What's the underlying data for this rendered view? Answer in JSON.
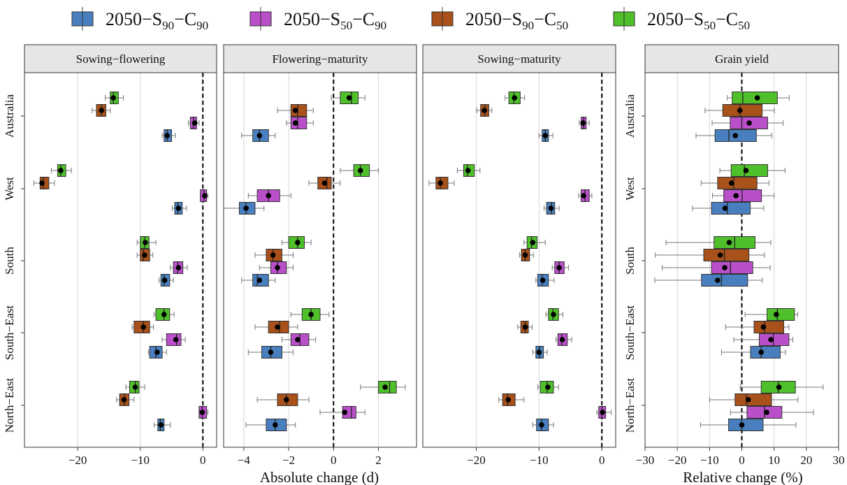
{
  "legend": {
    "position": "top",
    "entries": [
      {
        "key": "s90c90",
        "base": "2050−S",
        "sub1": "90",
        "mid": "−C",
        "sub2": "90",
        "color": "#4a7fbf"
      },
      {
        "key": "s50c90",
        "base": "2050−S",
        "sub1": "50",
        "mid": "−C",
        "sub2": "90",
        "color": "#b94fc9"
      },
      {
        "key": "s90c50",
        "base": "2050−S",
        "sub1": "90",
        "mid": "−C",
        "sub2": "50",
        "color": "#a8511b"
      },
      {
        "key": "s50c50",
        "base": "2050−S",
        "sub1": "50",
        "mid": "−C",
        "sub2": "50",
        "color": "#4fbf2a"
      }
    ]
  },
  "axis_titles": {
    "absolute": "Absolute change (d)",
    "relative": "Relative change (%)"
  },
  "chart_data": {
    "type": "boxplot",
    "orientation": "horizontal",
    "regions": [
      "Australia",
      "West",
      "South",
      "South−East",
      "North−East"
    ],
    "series_order": [
      "s90c90",
      "s50c90",
      "s90c50",
      "s50c50"
    ],
    "reference_line": 0,
    "grid": true,
    "note": "Each box: [whisker_low, q1, median, q3, whisker_high, mean]",
    "panels": [
      {
        "title": "Sowing−flowering",
        "xlim": [
          -28.5,
          2.2
        ],
        "ticks": [
          -20,
          -10,
          0
        ],
        "tick_labels": [
          "−20",
          "−10",
          "0"
        ],
        "data": {
          "Australia": {
            "s90c90": [
              -6.5,
              -6.2,
              -5.7,
              -5.0,
              -4.4,
              -5.7
            ],
            "s50c90": [
              -2.3,
              -2.0,
              -1.5,
              -1.0,
              -0.6,
              -1.3
            ],
            "s90c50": [
              -17.7,
              -17.0,
              -16.2,
              -15.5,
              -14.8,
              -16.2
            ],
            "s50c50": [
              -15.6,
              -14.8,
              -14.3,
              -13.5,
              -12.7,
              -14.3
            ]
          },
          "West": {
            "s90c90": [
              -4.9,
              -4.5,
              -4.0,
              -3.3,
              -2.6,
              -3.9
            ],
            "s50c90": [
              -0.4,
              -0.4,
              0.2,
              0.6,
              0.8,
              0.3
            ],
            "s90c50": [
              -27.0,
              -26.0,
              -25.5,
              -24.6,
              -23.7,
              -25.7
            ],
            "s50c50": [
              -24.2,
              -23.2,
              -22.7,
              -21.9,
              -21.0,
              -22.7
            ]
          },
          "South": {
            "s90c90": [
              -7.0,
              -6.7,
              -6.2,
              -5.3,
              -4.7,
              -6.1
            ],
            "s50c90": [
              -5.2,
              -4.7,
              -4.0,
              -3.2,
              -2.5,
              -3.9
            ],
            "s90c50": [
              -10.5,
              -10.0,
              -9.5,
              -8.5,
              -8.0,
              -9.3
            ],
            "s50c50": [
              -10.5,
              -10.0,
              -9.3,
              -8.6,
              -7.5,
              -9.2
            ]
          },
          "South−East": {
            "s90c90": [
              -8.7,
              -8.5,
              -7.5,
              -6.5,
              -5.8,
              -7.3
            ],
            "s50c90": [
              -6.5,
              -5.8,
              -4.2,
              -3.5,
              -2.8,
              -4.3
            ],
            "s90c50": [
              -11.3,
              -11.0,
              -9.5,
              -8.5,
              -7.9,
              -9.5
            ],
            "s50c50": [
              -7.8,
              -7.5,
              -6.2,
              -5.3,
              -4.6,
              -6.2
            ]
          },
          "North−East": {
            "s90c90": [
              -7.8,
              -7.2,
              -6.8,
              -6.2,
              -5.2,
              -6.7
            ],
            "s50c90": [
              -0.6,
              -0.6,
              -0.1,
              0.6,
              0.8,
              -0.1
            ],
            "s90c50": [
              -13.8,
              -13.3,
              -12.5,
              -11.8,
              -11.0,
              -12.6
            ],
            "s50c50": [
              -12.3,
              -11.7,
              -10.8,
              -10.2,
              -9.3,
              -10.8
            ]
          }
        }
      },
      {
        "title": "Flowering−maturity",
        "xlim": [
          -4.9,
          3.7
        ],
        "ticks": [
          -4,
          -2,
          0,
          2
        ],
        "tick_labels": [
          "−4",
          "−2",
          "0",
          "2"
        ],
        "data": {
          "Australia": {
            "s90c90": [
              -4.1,
              -3.6,
              -3.3,
              -2.9,
              -2.6,
              -3.3
            ],
            "s50c90": [
              -2.1,
              -1.9,
              -1.6,
              -1.2,
              -0.9,
              -1.7
            ],
            "s90c50": [
              -2.5,
              -1.9,
              -1.6,
              -1.2,
              -0.9,
              -1.7
            ],
            "s50c50": [
              -0.1,
              0.3,
              0.8,
              1.1,
              1.4,
              0.7
            ]
          },
          "West": {
            "s90c90": [
              -4.9,
              -4.2,
              -3.9,
              -3.5,
              -3.1,
              -3.9
            ],
            "s50c90": [
              -3.8,
              -3.4,
              -2.9,
              -2.4,
              -1.9,
              -2.9
            ],
            "s90c50": [
              -1.1,
              -0.7,
              -0.3,
              -0.1,
              0.3,
              -0.4
            ],
            "s50c50": [
              0.3,
              0.9,
              1.2,
              1.6,
              2.0,
              1.2
            ]
          },
          "South": {
            "s90c90": [
              -4.1,
              -3.6,
              -3.4,
              -2.9,
              -2.6,
              -3.3
            ],
            "s50c90": [
              -3.3,
              -2.8,
              -2.5,
              -2.1,
              -1.8,
              -2.5
            ],
            "s90c50": [
              -3.5,
              -3.0,
              -2.7,
              -2.3,
              -1.8,
              -2.7
            ],
            "s50c50": [
              -2.3,
              -2.0,
              -1.6,
              -1.3,
              -1.0,
              -1.6
            ]
          },
          "South−East": {
            "s90c90": [
              -3.8,
              -3.2,
              -2.8,
              -2.3,
              -1.8,
              -2.8
            ],
            "s50c90": [
              -2.3,
              -1.9,
              -1.5,
              -1.1,
              -0.8,
              -1.6
            ],
            "s90c50": [
              -3.5,
              -2.9,
              -2.4,
              -2.0,
              -1.6,
              -2.5
            ],
            "s50c50": [
              -1.9,
              -1.4,
              -1.0,
              -0.6,
              -0.2,
              -1.0
            ]
          },
          "North−East": {
            "s90c90": [
              -3.9,
              -3.0,
              -2.6,
              -2.1,
              -1.7,
              -2.6
            ],
            "s50c90": [
              -0.6,
              0.4,
              0.8,
              1.0,
              1.4,
              0.5
            ],
            "s90c50": [
              -3.4,
              -2.5,
              -2.1,
              -1.6,
              -1.1,
              -2.1
            ],
            "s50c50": [
              1.2,
              2.0,
              2.5,
              2.8,
              3.2,
              2.3
            ]
          }
        }
      },
      {
        "title": "Sowing−maturity",
        "xlim": [
          -28.5,
          2.2
        ],
        "ticks": [
          -20,
          -10,
          0
        ],
        "tick_labels": [
          "−20",
          "−10",
          "0"
        ],
        "data": {
          "Australia": {
            "s90c90": [
              -10.0,
              -9.5,
              -9.0,
              -8.5,
              -7.8,
              -9.0
            ],
            "s50c90": [
              -3.6,
              -3.3,
              -2.9,
              -2.5,
              -2.0,
              -3.0
            ],
            "s90c50": [
              -19.9,
              -19.3,
              -18.6,
              -18.0,
              -17.5,
              -18.7
            ],
            "s50c50": [
              -15.4,
              -14.8,
              -14.0,
              -13.0,
              -12.3,
              -13.9
            ]
          },
          "West": {
            "s90c90": [
              -9.2,
              -8.8,
              -8.0,
              -7.5,
              -6.8,
              -8.1
            ],
            "s50c90": [
              -3.7,
              -3.3,
              -2.7,
              -2.0,
              -1.6,
              -2.9
            ],
            "s90c50": [
              -27.5,
              -26.4,
              -25.7,
              -24.5,
              -23.5,
              -25.7
            ],
            "s50c50": [
              -23.0,
              -22.0,
              -21.4,
              -20.3,
              -19.4,
              -21.3
            ]
          },
          "South": {
            "s90c90": [
              -10.5,
              -10.2,
              -9.5,
              -8.5,
              -7.6,
              -9.4
            ],
            "s50c90": [
              -7.9,
              -7.5,
              -6.8,
              -6.0,
              -5.3,
              -6.8
            ],
            "s90c50": [
              -13.1,
              -12.8,
              -12.2,
              -11.5,
              -10.9,
              -12.2
            ],
            "s50c50": [
              -12.4,
              -11.9,
              -11.2,
              -10.3,
              -9.0,
              -11.0
            ]
          },
          "South−East": {
            "s90c90": [
              -11.0,
              -10.5,
              -9.9,
              -9.3,
              -8.7,
              -10.0
            ],
            "s50c90": [
              -7.3,
              -7.0,
              -6.4,
              -5.5,
              -4.8,
              -6.3
            ],
            "s90c50": [
              -13.4,
              -12.9,
              -12.2,
              -11.7,
              -11.1,
              -12.2
            ],
            "s50c50": [
              -8.9,
              -8.5,
              -7.8,
              -6.9,
              -6.2,
              -7.7
            ]
          },
          "North−East": {
            "s90c90": [
              -11.0,
              -10.4,
              -9.6,
              -8.5,
              -7.7,
              -9.6
            ],
            "s50c90": [
              -0.8,
              -0.5,
              0.0,
              0.6,
              1.5,
              0.1
            ],
            "s90c50": [
              -16.4,
              -15.8,
              -15.0,
              -13.8,
              -12.4,
              -14.9
            ],
            "s50c50": [
              -10.2,
              -9.8,
              -8.7,
              -7.7,
              -6.9,
              -8.6
            ]
          }
        }
      },
      {
        "title": "Grain yield",
        "xlim": [
          -30,
          30
        ],
        "ticks": [
          -30,
          -20,
          -10,
          0,
          10,
          20,
          30
        ],
        "tick_labels": [
          "−30",
          "−20",
          "−10",
          "0",
          "10",
          "20",
          "30"
        ],
        "data": {
          "Australia": {
            "s90c90": [
              -14.2,
              -8.3,
              -4.0,
              4.5,
              9.3,
              -2.0
            ],
            "s50c90": [
              -9.2,
              -3.6,
              0.0,
              8.0,
              12.8,
              2.3
            ],
            "s90c50": [
              -11.4,
              -5.9,
              -0.5,
              6.3,
              10.1,
              -0.6
            ],
            "s50c50": [
              -4.5,
              -3.0,
              0.3,
              11.0,
              14.7,
              4.8
            ]
          },
          "West": {
            "s90c90": [
              -15.3,
              -9.4,
              -4.5,
              2.6,
              6.8,
              -5.2
            ],
            "s50c90": [
              -9.1,
              -5.6,
              0.1,
              6.1,
              10.0,
              -1.8
            ],
            "s90c50": [
              -12.6,
              -7.5,
              -2.5,
              4.7,
              8.4,
              -3.2
            ],
            "s50c50": [
              -6.8,
              -3.3,
              0.8,
              8.0,
              13.4,
              1.3
            ]
          },
          "South": {
            "s90c90": [
              -27.0,
              -12.5,
              -6.3,
              1.8,
              6.3,
              -7.5
            ],
            "s50c90": [
              -24.7,
              -9.4,
              -3.5,
              3.4,
              8.8,
              -5.3
            ],
            "s90c50": [
              -26.8,
              -11.8,
              -5.4,
              2.2,
              7.0,
              -6.7
            ],
            "s50c50": [
              -23.5,
              -8.6,
              -2.2,
              4.1,
              9.0,
              -3.9
            ]
          },
          "South−East": {
            "s90c90": [
              -6.3,
              2.7,
              6.0,
              11.9,
              13.5,
              6.0
            ],
            "s50c90": [
              -2.5,
              5.4,
              9.8,
              14.6,
              15.8,
              9.0
            ],
            "s90c50": [
              -5.0,
              3.8,
              7.1,
              13.0,
              14.6,
              6.7
            ],
            "s50c50": [
              1.0,
              7.8,
              11.0,
              16.3,
              17.3,
              10.7
            ]
          },
          "North−East": {
            "s90c90": [
              -12.8,
              -4.1,
              0.0,
              6.6,
              16.8,
              0.0
            ],
            "s50c90": [
              -3.5,
              1.6,
              7.0,
              12.4,
              22.2,
              7.7
            ],
            "s90c50": [
              -10.0,
              -2.1,
              1.4,
              9.2,
              17.4,
              2.0
            ],
            "s50c50": [
              -0.5,
              6.0,
              11.3,
              16.6,
              25.2,
              11.5
            ]
          }
        }
      }
    ]
  }
}
